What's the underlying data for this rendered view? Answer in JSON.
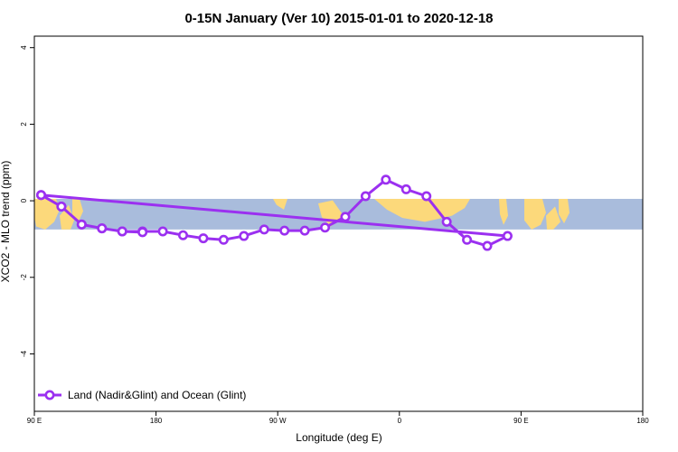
{
  "chart_data": {
    "type": "line",
    "title": "0-15N January (Ver 10)   2015-01-01 to 2020-12-18",
    "xlabel": "Longitude (deg E)",
    "ylabel": "XCO2 - MLO trend (ppm)",
    "ylim": [
      -5.5,
      4.3
    ],
    "y_ticks": [
      -4,
      -2,
      0,
      2,
      4
    ],
    "x_ticks": [
      "90 E",
      "180",
      "90 W",
      "0",
      "90 E",
      "180"
    ],
    "legend_position": "bottom-left",
    "band": {
      "y_top": 0.05,
      "y_bottom": -0.75,
      "ocean_color": "#a9bcdc",
      "land_color": "#fcd97b"
    },
    "series": [
      {
        "name": "Land (Nadir&Glint) and Ocean (Glint)",
        "color": "#9b30f0",
        "x": [
          95,
          110,
          125,
          140,
          155,
          170,
          185,
          200,
          215,
          230,
          245,
          260,
          275,
          290,
          305,
          320,
          335,
          350,
          5,
          20,
          35,
          50,
          65,
          80,
          95,
          110,
          125,
          140,
          155,
          170
        ],
        "y": [
          0.15,
          -0.15,
          -0.62,
          -0.72,
          -0.8,
          -0.8,
          -0.8,
          -0.9,
          -0.98,
          -1.02,
          -0.92,
          -0.75,
          -0.78,
          -0.78,
          -0.7,
          -0.42,
          0.12,
          0.55,
          0.3,
          0.12,
          -0.55,
          -1.02,
          -1.18,
          -0.92,
          0.15,
          -0.15,
          -0.62,
          -0.72,
          -0.8,
          -0.82
        ]
      }
    ]
  }
}
